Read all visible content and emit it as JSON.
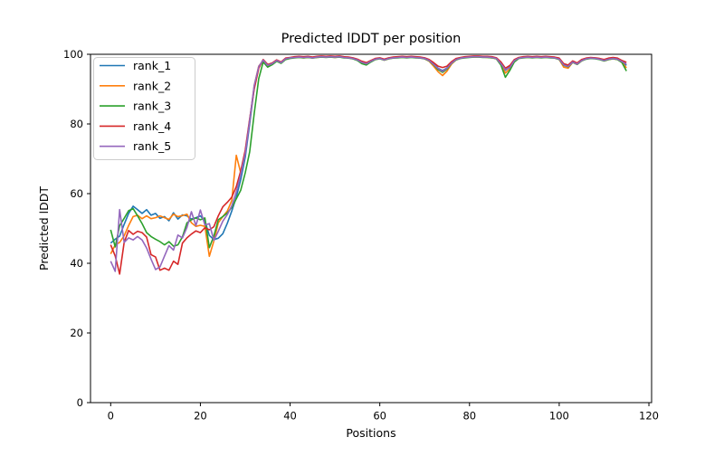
{
  "figure": {
    "background": "#ffffff",
    "spine_color": "#000000",
    "text_color": "#000000"
  },
  "chart_data": {
    "type": "line",
    "title": "Predicted lDDT per position",
    "xlabel": "Positions",
    "ylabel": "Predicted lDDT",
    "xlim": [
      -4.5,
      120.6
    ],
    "ylim": [
      0,
      100
    ],
    "xticks": [
      0,
      20,
      40,
      60,
      80,
      100,
      120
    ],
    "yticks": [
      0,
      20,
      40,
      60,
      80,
      100
    ],
    "grid": false,
    "legend_position": "upper left",
    "line_width": 1.6,
    "x": [
      0,
      1,
      2,
      3,
      4,
      5,
      6,
      7,
      8,
      9,
      10,
      11,
      12,
      13,
      14,
      15,
      16,
      17,
      18,
      19,
      20,
      21,
      22,
      23,
      24,
      25,
      26,
      27,
      28,
      29,
      30,
      31,
      32,
      33,
      34,
      35,
      36,
      37,
      38,
      39,
      40,
      41,
      42,
      43,
      44,
      45,
      46,
      47,
      48,
      49,
      50,
      51,
      52,
      53,
      54,
      55,
      56,
      57,
      58,
      59,
      60,
      61,
      62,
      63,
      64,
      65,
      66,
      67,
      68,
      69,
      70,
      71,
      72,
      73,
      74,
      75,
      76,
      77,
      78,
      79,
      80,
      81,
      82,
      83,
      84,
      85,
      86,
      87,
      88,
      89,
      90,
      91,
      92,
      93,
      94,
      95,
      96,
      97,
      98,
      99,
      100,
      101,
      102,
      103,
      104,
      105,
      106,
      107,
      108,
      109,
      110,
      111,
      112,
      113,
      114,
      115
    ],
    "series": [
      {
        "name": "rank_1",
        "color": "#1f77b4",
        "values": [
          45.8,
          46.9,
          47.8,
          51.2,
          54.3,
          56.4,
          55.4,
          54.3,
          55.4,
          53.8,
          54.3,
          52.9,
          53.4,
          52.2,
          54.5,
          52.7,
          53.9,
          53.6,
          52.7,
          53.1,
          53.6,
          52.2,
          48.0,
          46.8,
          47.2,
          48.5,
          51.5,
          55.0,
          59.0,
          64.0,
          70.5,
          80.0,
          90.5,
          96.2,
          98.4,
          96.9,
          97.4,
          98.3,
          97.7,
          98.8,
          99.0,
          99.2,
          99.3,
          99.2,
          99.3,
          99.1,
          99.3,
          99.4,
          99.3,
          99.4,
          99.3,
          99.4,
          99.2,
          99.1,
          98.9,
          98.5,
          97.8,
          97.4,
          98.1,
          98.7,
          98.9,
          98.5,
          98.9,
          99.1,
          99.2,
          99.3,
          99.2,
          99.3,
          99.2,
          99.1,
          98.9,
          98.3,
          97.2,
          96.0,
          95.3,
          96.1,
          97.6,
          98.6,
          99.0,
          99.2,
          99.3,
          99.4,
          99.4,
          99.3,
          99.3,
          99.2,
          98.9,
          97.5,
          95.4,
          96.4,
          98.3,
          99.0,
          99.2,
          99.3,
          99.2,
          99.3,
          99.2,
          99.3,
          99.2,
          99.1,
          98.7,
          97.0,
          96.6,
          97.9,
          97.3,
          98.3,
          98.8,
          99.0,
          98.9,
          98.7,
          98.3,
          98.7,
          98.9,
          98.7,
          98.0,
          96.8
        ]
      },
      {
        "name": "rank_2",
        "color": "#ff7f0e",
        "values": [
          42.7,
          45.3,
          46.0,
          47.9,
          50.8,
          53.4,
          53.8,
          52.8,
          53.6,
          52.8,
          53.1,
          53.6,
          53.1,
          52.6,
          54.1,
          53.4,
          53.7,
          54.1,
          51.6,
          50.6,
          50.9,
          50.6,
          42.0,
          46.4,
          51.6,
          53.4,
          55.0,
          58.0,
          71.0,
          66.0,
          72.0,
          81.0,
          91.0,
          96.6,
          98.2,
          96.7,
          97.2,
          98.1,
          97.5,
          98.6,
          98.9,
          99.1,
          99.1,
          99.0,
          99.1,
          99.0,
          99.1,
          99.2,
          99.2,
          99.2,
          99.1,
          99.2,
          99.1,
          99.0,
          98.7,
          98.3,
          97.6,
          97.2,
          97.9,
          98.5,
          98.8,
          98.3,
          98.7,
          99.0,
          99.1,
          99.1,
          99.1,
          99.2,
          99.1,
          99.0,
          98.7,
          98.0,
          96.6,
          95.0,
          93.9,
          95.2,
          97.2,
          98.4,
          98.9,
          99.1,
          99.2,
          99.2,
          99.2,
          99.2,
          99.1,
          99.0,
          98.7,
          97.0,
          94.6,
          95.9,
          98.1,
          98.9,
          99.1,
          99.1,
          99.1,
          99.1,
          99.1,
          99.1,
          99.1,
          99.0,
          98.5,
          96.3,
          96.0,
          97.7,
          97.1,
          98.1,
          98.7,
          98.9,
          98.8,
          98.6,
          98.1,
          98.5,
          98.7,
          98.5,
          97.7,
          96.1
        ]
      },
      {
        "name": "rank_3",
        "color": "#2ca02c",
        "values": [
          49.6,
          44.7,
          50.8,
          52.9,
          55.1,
          55.7,
          53.6,
          51.4,
          48.8,
          47.7,
          46.9,
          46.2,
          45.3,
          46.2,
          44.9,
          45.3,
          47.6,
          51.6,
          52.5,
          53.0,
          52.5,
          53.0,
          44.5,
          47.8,
          52.5,
          53.4,
          54.5,
          56.0,
          58.5,
          61.0,
          66.0,
          72.0,
          83.0,
          93.0,
          97.8,
          96.3,
          97.0,
          98.0,
          97.4,
          98.5,
          98.8,
          99.0,
          99.1,
          99.0,
          99.1,
          98.9,
          99.1,
          99.2,
          99.1,
          99.2,
          99.1,
          99.2,
          99.0,
          98.9,
          98.7,
          98.2,
          97.3,
          96.9,
          97.8,
          98.5,
          98.7,
          98.3,
          98.7,
          98.9,
          99.0,
          99.1,
          99.0,
          99.1,
          99.0,
          98.9,
          98.7,
          98.1,
          97.0,
          95.6,
          94.8,
          95.8,
          97.4,
          98.4,
          98.8,
          99.0,
          99.1,
          99.2,
          99.2,
          99.1,
          99.1,
          99.0,
          98.7,
          96.9,
          93.4,
          95.4,
          97.8,
          98.8,
          99.0,
          99.1,
          99.0,
          99.1,
          99.0,
          99.1,
          99.0,
          98.9,
          98.5,
          96.8,
          96.4,
          97.7,
          97.1,
          98.1,
          98.6,
          98.8,
          98.7,
          98.5,
          98.1,
          98.5,
          98.7,
          98.5,
          97.6,
          95.2
        ]
      },
      {
        "name": "rank_4",
        "color": "#d62728",
        "values": [
          45.3,
          42.1,
          36.9,
          46.0,
          49.4,
          48.3,
          49.2,
          48.8,
          47.5,
          42.5,
          41.8,
          38.0,
          38.6,
          38.0,
          40.6,
          39.7,
          45.8,
          47.3,
          48.4,
          49.3,
          48.8,
          50.2,
          49.6,
          50.5,
          53.6,
          56.2,
          57.5,
          59.0,
          62.0,
          66.5,
          72.5,
          81.5,
          90.0,
          96.0,
          98.5,
          97.1,
          97.5,
          98.4,
          97.8,
          98.9,
          99.1,
          99.3,
          99.4,
          99.3,
          99.4,
          99.2,
          99.4,
          99.5,
          99.4,
          99.5,
          99.4,
          99.5,
          99.3,
          99.2,
          99.0,
          98.6,
          98.0,
          97.6,
          98.2,
          98.8,
          99.0,
          98.6,
          99.0,
          99.2,
          99.3,
          99.4,
          99.3,
          99.4,
          99.3,
          99.2,
          99.0,
          98.5,
          97.6,
          96.6,
          96.2,
          96.6,
          97.9,
          98.8,
          99.1,
          99.3,
          99.4,
          99.5,
          99.5,
          99.4,
          99.4,
          99.3,
          99.0,
          97.8,
          96.0,
          96.8,
          98.5,
          99.1,
          99.3,
          99.4,
          99.3,
          99.4,
          99.3,
          99.4,
          99.3,
          99.2,
          98.9,
          97.3,
          96.9,
          98.1,
          97.5,
          98.5,
          98.9,
          99.1,
          99.0,
          98.8,
          98.5,
          98.9,
          99.1,
          98.9,
          98.2,
          97.7
        ]
      },
      {
        "name": "rank_5",
        "color": "#9467bd",
        "values": [
          40.6,
          37.7,
          55.4,
          46.0,
          47.3,
          46.7,
          47.7,
          46.7,
          44.4,
          41.2,
          38.2,
          39.0,
          42.1,
          45.1,
          43.8,
          48.1,
          47.3,
          50.3,
          54.8,
          50.8,
          55.3,
          51.0,
          51.4,
          46.6,
          49.2,
          52.1,
          54.0,
          56.5,
          60.5,
          65.5,
          71.5,
          81.0,
          91.0,
          96.5,
          98.3,
          96.8,
          97.3,
          98.2,
          97.6,
          98.7,
          99.0,
          99.1,
          99.2,
          99.1,
          99.2,
          99.0,
          99.2,
          99.3,
          99.2,
          99.3,
          99.2,
          99.3,
          99.1,
          99.0,
          98.8,
          98.4,
          97.7,
          97.3,
          98.0,
          98.6,
          98.8,
          98.4,
          98.8,
          99.0,
          99.1,
          99.2,
          99.1,
          99.2,
          99.1,
          99.0,
          98.8,
          98.2,
          97.1,
          95.9,
          95.1,
          96.0,
          97.5,
          98.5,
          98.9,
          99.1,
          99.2,
          99.3,
          99.3,
          99.2,
          99.2,
          99.1,
          98.8,
          97.3,
          95.6,
          96.2,
          98.2,
          98.9,
          99.1,
          99.2,
          99.1,
          99.2,
          99.1,
          99.2,
          99.1,
          99.0,
          98.6,
          96.9,
          96.5,
          97.8,
          97.2,
          98.2,
          98.7,
          98.9,
          98.8,
          98.6,
          98.2,
          98.6,
          98.8,
          98.6,
          97.9,
          97.2
        ]
      }
    ]
  }
}
